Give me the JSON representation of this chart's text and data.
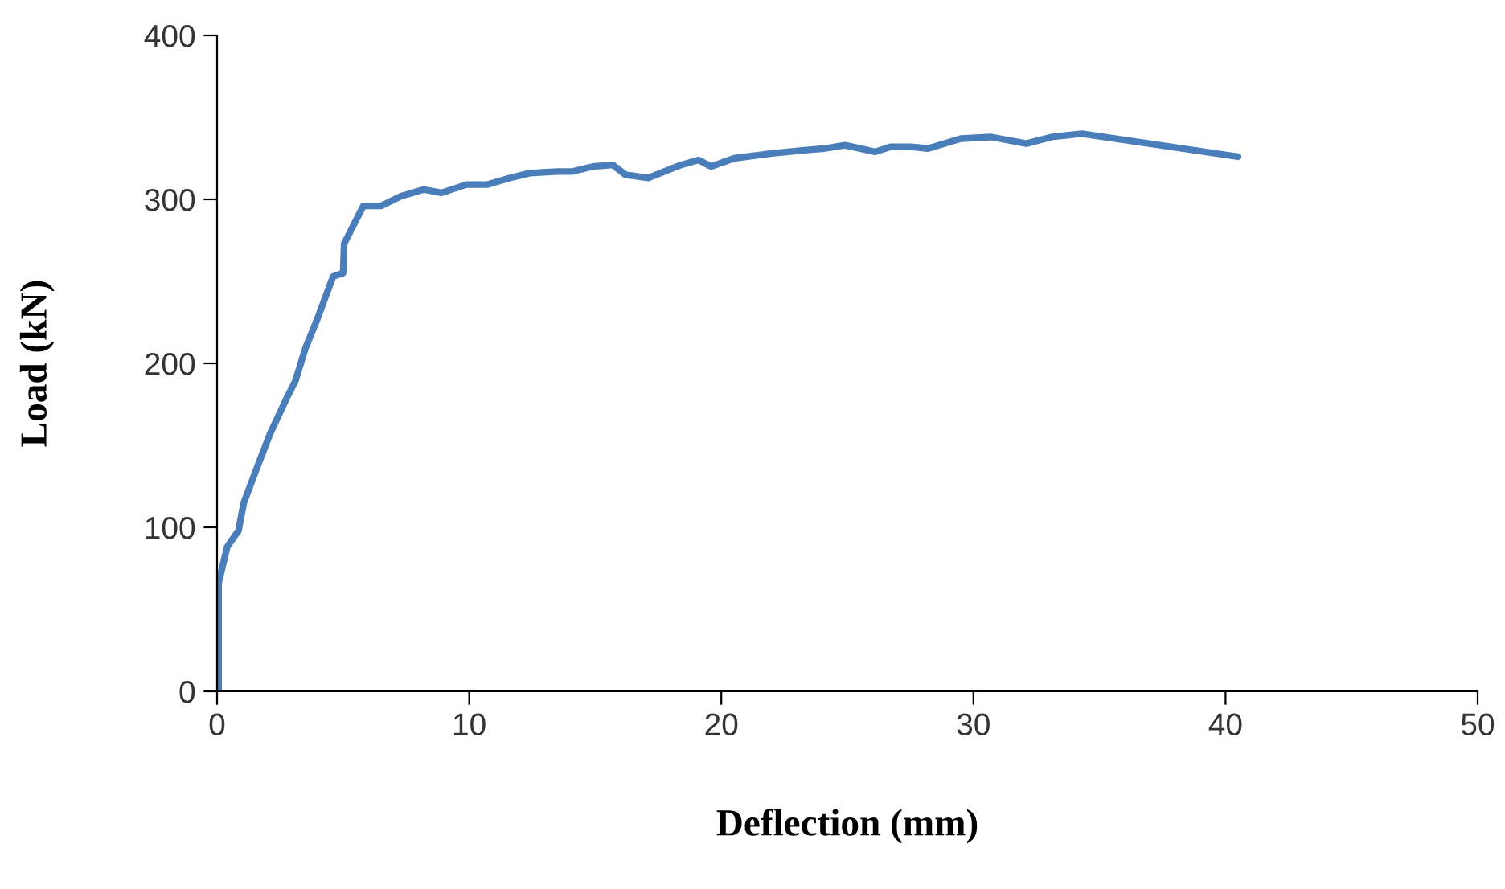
{
  "chart_data": {
    "type": "line",
    "xlabel": "Deflection (mm)",
    "ylabel": "Load (kN)",
    "xlim": [
      0,
      50
    ],
    "xticks": [
      0,
      10,
      20,
      30,
      40,
      50
    ],
    "ylim": [
      0,
      400
    ],
    "yticks": [
      0,
      100,
      200,
      300,
      400
    ],
    "grid": false,
    "marker": "none",
    "line_style": "solid",
    "series": [
      {
        "color": "#4a7ebb",
        "x": [
          0.06,
          0.06,
          0.4,
          0.85,
          1.06,
          1.6,
          2.1,
          2.8,
          3.1,
          3.5,
          4.0,
          4.6,
          5.0,
          5.04,
          5.8,
          6.5,
          7.3,
          8.2,
          8.9,
          9.9,
          10.7,
          11.6,
          12.4,
          13.5,
          14.1,
          14.9,
          15.7,
          16.2,
          17.1,
          18.4,
          19.1,
          19.6,
          20.5,
          22.0,
          23.3,
          24.1,
          24.9,
          26.1,
          26.7,
          27.5,
          28.2,
          29.5,
          30.7,
          32.1,
          33.1,
          34.3,
          40.5
        ],
        "values": [
          0,
          66,
          88,
          98,
          115,
          137,
          157,
          180,
          189,
          209,
          228,
          253,
          255,
          273,
          296,
          296,
          302,
          306,
          304,
          309,
          309,
          313,
          316,
          317,
          317,
          320,
          321,
          315,
          313,
          321,
          324,
          320,
          325,
          328,
          330,
          331,
          333,
          329,
          332,
          332,
          331,
          337,
          338,
          334,
          338,
          340,
          326
        ]
      }
    ]
  }
}
